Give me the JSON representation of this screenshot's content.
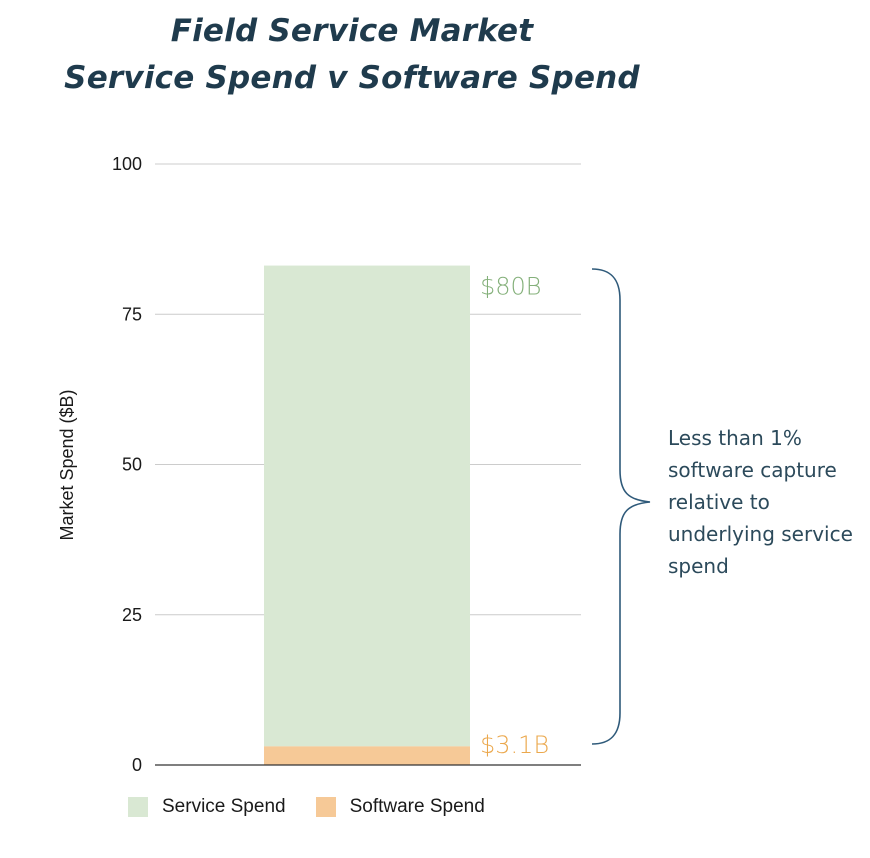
{
  "title_line1": "Field Service Market",
  "title_line2": "Service Spend v Software Spend",
  "annotation": "Less than 1% software capture relative to underlying service spend",
  "colors": {
    "service": "#d9e8d3",
    "software": "#f6c997",
    "service_label": "#84b07a",
    "software_label": "#eba84d",
    "brace": "#2f5a7a",
    "title": "#1f3b4d"
  },
  "chart_data": {
    "type": "bar",
    "stacked": true,
    "categories": [
      ""
    ],
    "series": [
      {
        "name": "Service Spend",
        "values": [
          80
        ],
        "label": "$80B"
      },
      {
        "name": "Software Spend",
        "values": [
          3.1
        ],
        "label": "$3.1B"
      }
    ],
    "ylabel": "Market Spend ($B)",
    "xlabel": "",
    "ylim": [
      0,
      100
    ],
    "yticks": [
      0,
      25,
      50,
      75,
      100
    ],
    "grid": true,
    "legend": "bottom-left"
  }
}
